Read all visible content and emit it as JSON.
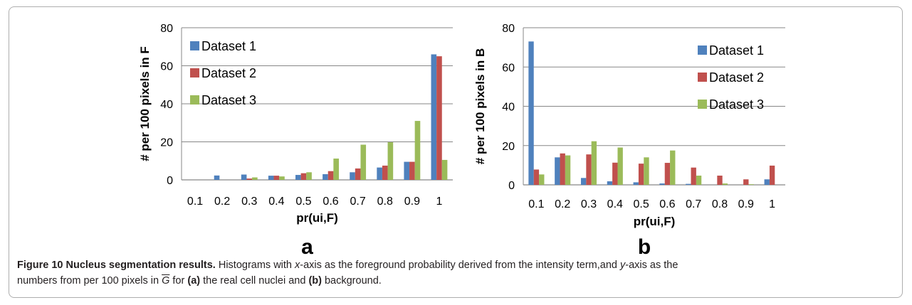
{
  "figure": {
    "caption": {
      "label": "Figure 10",
      "title": "Nucleus segmentation results.",
      "text_1": "Histograms with ",
      "x_italic": "x",
      "text_2": "-axis as the foreground probability derived from the intensity term,and ",
      "y_italic": "y",
      "text_3": "-axis as the",
      "text_4": "numbers from per 100 pixels in ",
      "gbar_symbol": "G",
      "text_5": " for ",
      "ref_a": "(a)",
      "text_6": " the real cell nuclei and ",
      "ref_b": "(b)",
      "text_7": " background."
    }
  },
  "colors": {
    "series": [
      "#4F81BD",
      "#C0504D",
      "#9BBB59"
    ],
    "grid": "#878787",
    "axis": "#878787",
    "text": "#000000"
  },
  "chart_data": [
    {
      "panel_label": "a",
      "type": "bar",
      "categories": [
        "0.1",
        "0.2",
        "0.3",
        "0.4",
        "0.5",
        "0.6",
        "0.7",
        "0.8",
        "0.9",
        "1"
      ],
      "series": [
        {
          "name": "Dataset 1",
          "values": [
            0,
            2.3,
            2.8,
            2.2,
            2.6,
            3,
            4,
            6.5,
            9.5,
            66
          ]
        },
        {
          "name": "Dataset 2",
          "values": [
            0,
            0,
            0.7,
            2.2,
            3.5,
            4.6,
            6,
            7.5,
            9.5,
            65
          ]
        },
        {
          "name": "Dataset 3",
          "values": [
            0,
            0,
            1.3,
            1.8,
            4,
            11.2,
            18.5,
            19.8,
            31,
            10.5
          ]
        }
      ],
      "xlabel": "pr(ui,F)",
      "ylabel": "# per 100 pixels in F",
      "ylim": [
        0,
        80
      ],
      "yticks": [
        "0",
        "20",
        "40",
        "60",
        "80"
      ],
      "grid": true,
      "legend_position": "top-left"
    },
    {
      "panel_label": "b",
      "type": "bar",
      "categories": [
        "0.1",
        "0.2",
        "0.3",
        "0.4",
        "0.5",
        "0.6",
        "0.7",
        "0.8",
        "0.9",
        "1"
      ],
      "series": [
        {
          "name": "Dataset 1",
          "values": [
            73,
            14,
            3.5,
            1.8,
            1.3,
            0.7,
            0.5,
            0,
            0,
            2.8
          ]
        },
        {
          "name": "Dataset 2",
          "values": [
            7.8,
            16,
            15.5,
            11.3,
            10.8,
            11.2,
            8.8,
            4.7,
            2.8,
            9.8
          ]
        },
        {
          "name": "Dataset 3",
          "values": [
            5.3,
            15,
            22.2,
            19,
            14,
            17.5,
            4.7,
            0.7,
            0.3,
            0
          ]
        }
      ],
      "xlabel": "pr(ui,F)",
      "ylabel": "# per 100 pixels in B",
      "ylim": [
        0,
        80
      ],
      "yticks": [
        "0",
        "20",
        "40",
        "60",
        "80"
      ],
      "grid": true,
      "legend_position": "top-right"
    }
  ]
}
